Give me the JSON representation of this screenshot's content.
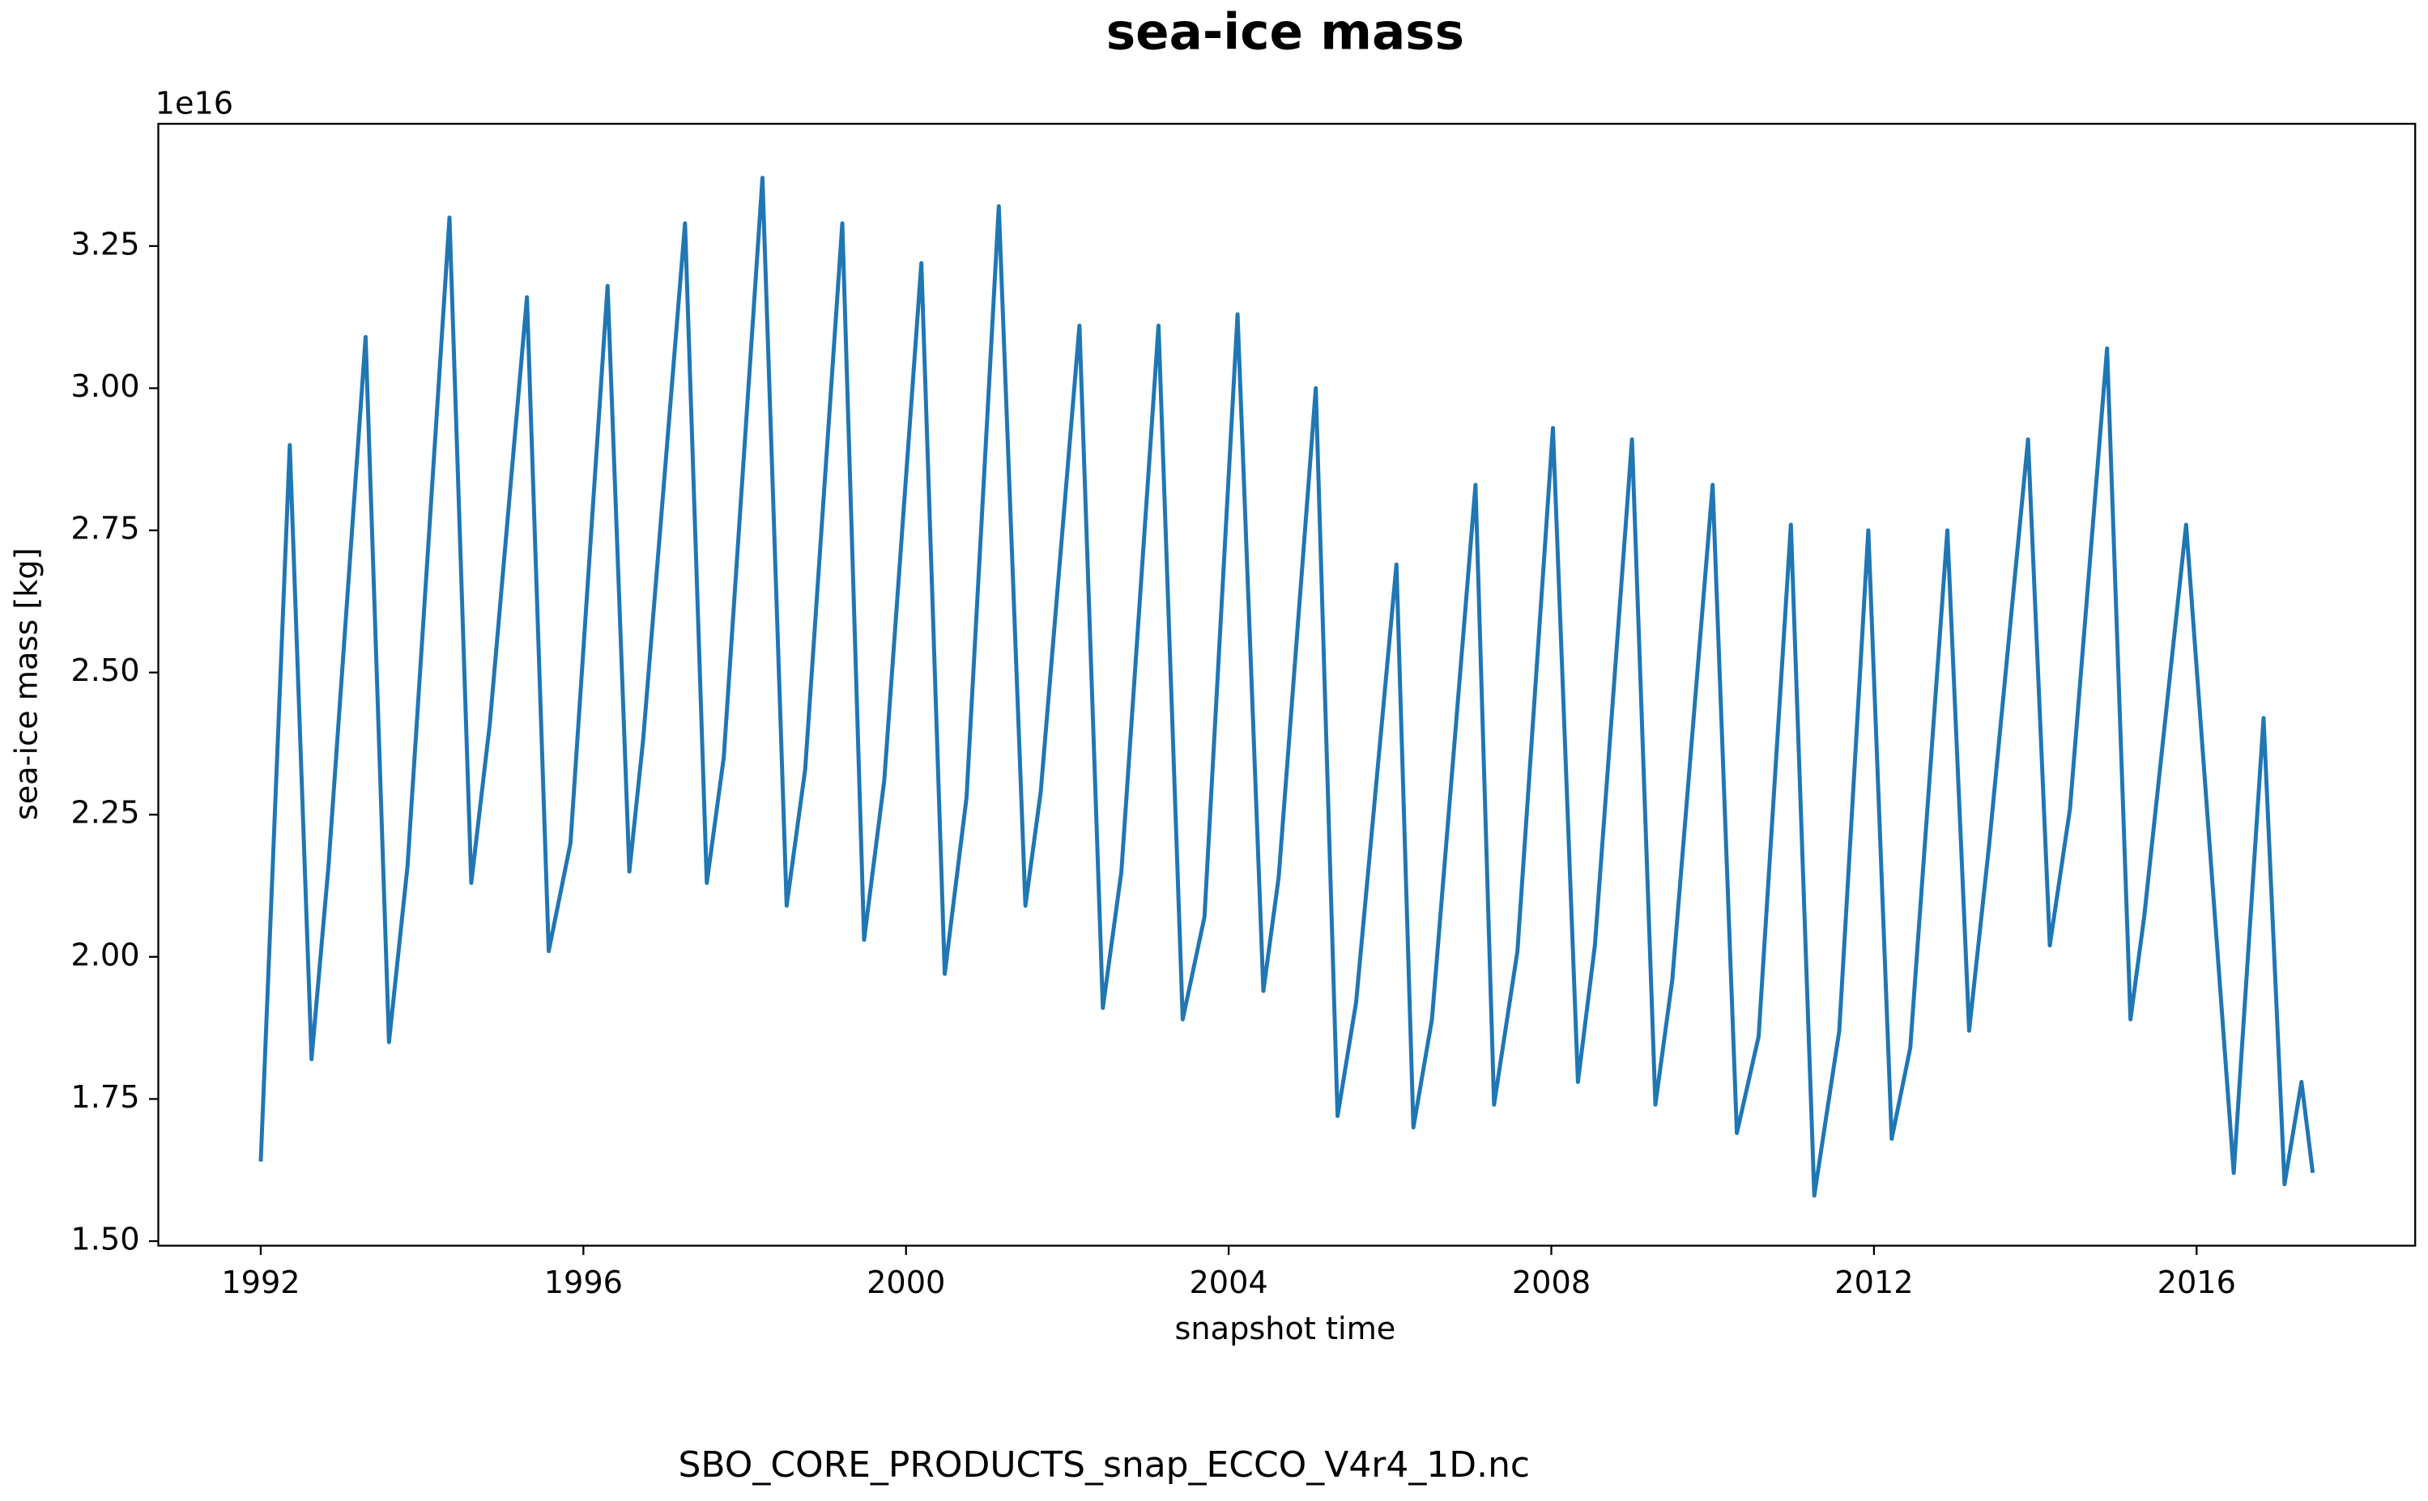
{
  "chart_data": {
    "type": "line",
    "title": "sea-ice mass",
    "x_label": "snapshot time",
    "y_label": "sea-ice mass [kg]",
    "y_offset_label": "1e16",
    "caption": "SBO_CORE_PRODUCTS_snap_ECCO_V4r4_1D.nc",
    "x": [
      1992.0,
      1992.36,
      1992.63,
      1992.84,
      1993.3,
      1993.59,
      1993.82,
      1994.34,
      1994.61,
      1994.84,
      1995.3,
      1995.57,
      1995.84,
      1996.3,
      1996.57,
      1996.74,
      1997.26,
      1997.53,
      1997.74,
      1998.22,
      1998.52,
      1998.75,
      1999.21,
      1999.48,
      1999.73,
      2000.19,
      2000.48,
      2000.75,
      2001.15,
      2001.48,
      2001.67,
      2002.15,
      2002.44,
      2002.67,
      2003.13,
      2003.43,
      2003.7,
      2004.11,
      2004.43,
      2004.62,
      2005.08,
      2005.35,
      2005.58,
      2006.08,
      2006.29,
      2006.52,
      2007.06,
      2007.29,
      2007.58,
      2008.02,
      2008.33,
      2008.54,
      2009.0,
      2009.29,
      2009.5,
      2010.0,
      2010.3,
      2010.57,
      2010.97,
      2011.26,
      2011.57,
      2011.93,
      2012.22,
      2012.45,
      2012.91,
      2013.18,
      2013.43,
      2013.91,
      2014.18,
      2014.43,
      2014.89,
      2015.18,
      2015.35,
      2015.87,
      2016.46,
      2016.83,
      2017.09,
      2017.3,
      2017.44
    ],
    "series": [
      {
        "color": "#1f77b4",
        "values": [
          1.64,
          2.9,
          1.82,
          2.16,
          3.09,
          1.85,
          2.16,
          3.3,
          2.13,
          2.41,
          3.16,
          2.01,
          2.2,
          3.18,
          2.15,
          2.38,
          3.29,
          2.13,
          2.35,
          3.37,
          2.09,
          2.33,
          3.29,
          2.03,
          2.31,
          3.22,
          1.97,
          2.28,
          3.32,
          2.09,
          2.29,
          3.11,
          1.91,
          2.15,
          3.11,
          1.89,
          2.07,
          3.13,
          1.94,
          2.14,
          3.0,
          1.72,
          1.92,
          2.69,
          1.7,
          1.89,
          2.83,
          1.74,
          2.01,
          2.93,
          1.78,
          2.02,
          2.91,
          1.74,
          1.96,
          2.83,
          1.69,
          1.86,
          2.76,
          1.58,
          1.87,
          2.75,
          1.68,
          1.84,
          2.75,
          1.87,
          2.2,
          2.91,
          2.02,
          2.26,
          3.07,
          1.89,
          2.07,
          2.76,
          1.62,
          2.42,
          1.6,
          1.78,
          1.62
        ]
      }
    ],
    "xlim": [
      1990.73,
      2018.71
    ],
    "ylim": [
      1.492,
      3.465
    ],
    "xticks": [
      1992,
      1996,
      2000,
      2004,
      2008,
      2012,
      2016
    ],
    "yticks": [
      {
        "value": 1.5,
        "label": "1.50"
      },
      1.75,
      {
        "value": 2,
        "label": "2.00"
      },
      2.25,
      {
        "value": 2.5,
        "label": "2.50"
      },
      2.75,
      {
        "value": 3,
        "label": "3.00"
      },
      3.25
    ],
    "grid": false
  }
}
